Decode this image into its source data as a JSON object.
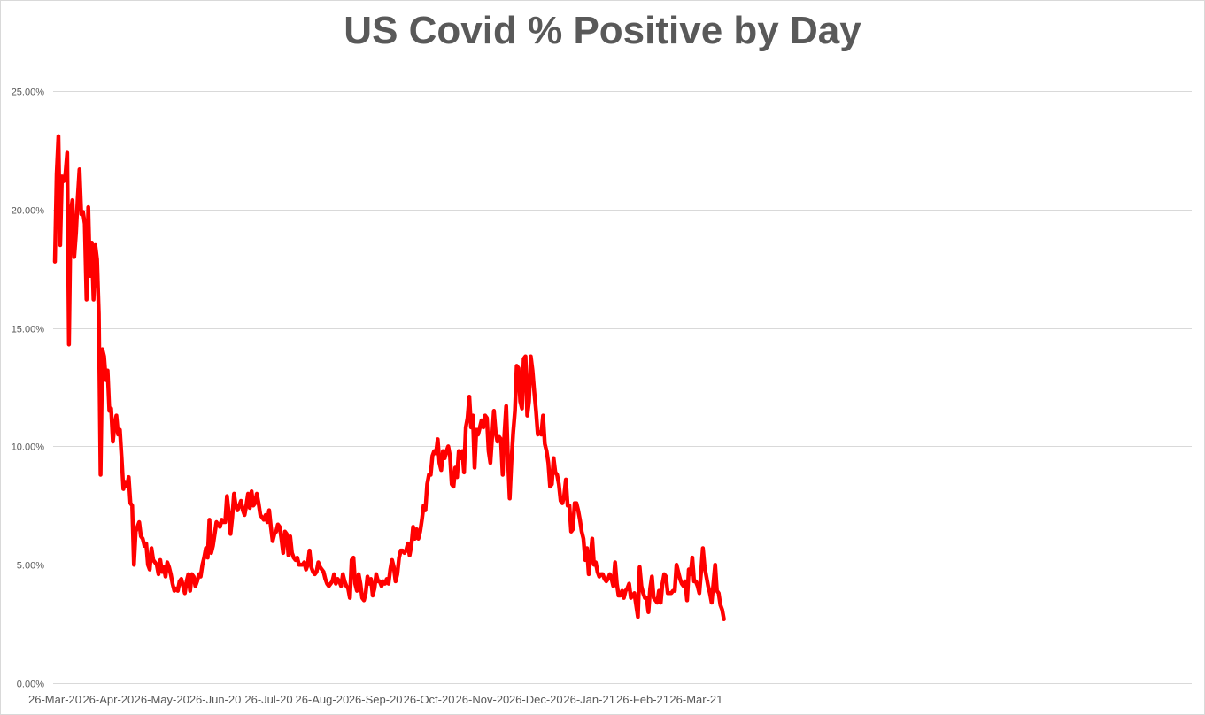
{
  "chart_data": {
    "type": "line",
    "title": "US Covid % Positive by Day",
    "xlabel": "",
    "ylabel": "",
    "ylim": [
      0,
      25
    ],
    "y_ticks": [
      "0.00%",
      "5.00%",
      "10.00%",
      "15.00%",
      "20.00%",
      "25.00%"
    ],
    "x_ticks": [
      "26-Mar-20",
      "26-Apr-20",
      "26-May-20",
      "26-Jun-20",
      "26-Jul-20",
      "26-Aug-20",
      "26-Sep-20",
      "26-Oct-20",
      "26-Nov-20",
      "26-Dec-20",
      "26-Jan-21",
      "26-Feb-21",
      "26-Mar-21"
    ],
    "grid": true,
    "legend": "none",
    "colors": {
      "line": "#ff0000",
      "grid": "#d9d9d9",
      "text": "#595959"
    },
    "series": [
      {
        "name": "% Positive",
        "start_date": "26-Mar-20",
        "interval_days": 1,
        "values": [
          17.8,
          21.5,
          23.1,
          18.5,
          21.4,
          21.2,
          21.5,
          22.4,
          14.3,
          19.9,
          20.4,
          18.0,
          19.0,
          20.5,
          21.7,
          19.8,
          19.9,
          19.4,
          16.2,
          20.1,
          17.2,
          18.6,
          16.2,
          18.5,
          17.9,
          15.6,
          8.8,
          14.1,
          13.8,
          12.8,
          13.2,
          11.5,
          11.6,
          10.2,
          10.9,
          11.3,
          10.5,
          10.7,
          9.5,
          8.2,
          8.5,
          8.3,
          8.7,
          7.6,
          7.5,
          5.0,
          6.4,
          6.6,
          6.8,
          6.2,
          6.1,
          5.8,
          5.9,
          5.0,
          4.8,
          5.7,
          5.2,
          5.1,
          5.0,
          4.6,
          5.2,
          4.7,
          4.9,
          4.5,
          5.1,
          4.9,
          4.6,
          4.2,
          3.9,
          4.0,
          3.9,
          4.3,
          4.4,
          4.1,
          3.8,
          4.3,
          4.6,
          3.9,
          4.6,
          4.5,
          4.1,
          4.3,
          4.6,
          4.5,
          5.0,
          5.3,
          5.7,
          5.3,
          6.9,
          5.5,
          5.8,
          6.3,
          6.8,
          6.7,
          6.6,
          6.9,
          6.8,
          6.8,
          7.9,
          7.2,
          6.3,
          7.0,
          8.0,
          7.5,
          7.3,
          7.5,
          7.7,
          7.3,
          7.1,
          7.5,
          8.0,
          7.4,
          8.1,
          7.5,
          7.6,
          8.0,
          7.6,
          7.1,
          7.0,
          6.9,
          7.1,
          6.8,
          7.3,
          6.6,
          6.0,
          6.3,
          6.4,
          6.7,
          6.6,
          6.1,
          5.5,
          6.4,
          6.3,
          5.4,
          6.2,
          5.5,
          5.3,
          5.2,
          5.3,
          5.0,
          5.0,
          5.0,
          5.1,
          4.8,
          5.0,
          5.6,
          4.9,
          4.7,
          4.6,
          4.7,
          5.1,
          4.9,
          4.8,
          4.7,
          4.4,
          4.2,
          4.1,
          4.2,
          4.3,
          4.6,
          4.2,
          4.4,
          4.3,
          4.1,
          4.6,
          4.3,
          4.1,
          4.0,
          3.6,
          5.2,
          5.3,
          4.2,
          3.9,
          4.6,
          4.2,
          3.6,
          3.5,
          3.8,
          4.5,
          4.2,
          4.4,
          3.7,
          4.0,
          4.6,
          4.3,
          4.3,
          4.1,
          4.3,
          4.2,
          4.4,
          4.2,
          4.8,
          5.2,
          4.9,
          4.3,
          4.6,
          5.3,
          5.6,
          5.6,
          5.5,
          5.6,
          5.9,
          5.4,
          5.8,
          6.6,
          6.1,
          6.5,
          6.1,
          6.4,
          6.9,
          7.5,
          7.3,
          8.4,
          8.8,
          8.8,
          9.6,
          9.8,
          9.7,
          10.3,
          9.3,
          9.0,
          9.8,
          9.5,
          9.8,
          10.0,
          9.6,
          8.4,
          8.3,
          9.1,
          8.7,
          9.8,
          9.5,
          9.8,
          8.9,
          10.8,
          11.2,
          12.1,
          10.8,
          11.3,
          9.1,
          10.7,
          10.5,
          10.8,
          11.1,
          10.8,
          11.3,
          11.2,
          9.8,
          9.3,
          10.4,
          11.5,
          10.6,
          10.2,
          10.4,
          10.3,
          8.8,
          10.5,
          11.7,
          9.5,
          7.8,
          9.4,
          10.6,
          11.5,
          13.4,
          13.3,
          11.9,
          11.6,
          13.7,
          13.8,
          11.3,
          11.9,
          13.8,
          13.2,
          12.3,
          11.5,
          10.5,
          10.6,
          10.5,
          11.3,
          10.1,
          9.8,
          9.3,
          8.3,
          8.4,
          9.5,
          8.9,
          8.8,
          8.4,
          7.7,
          7.6,
          7.9,
          8.6,
          7.5,
          7.5,
          6.4,
          6.5,
          7.6,
          7.6,
          7.3,
          6.9,
          6.4,
          6.1,
          5.2,
          5.7,
          4.6,
          5.3,
          6.1,
          5.0,
          5.1,
          4.7,
          4.5,
          4.6,
          4.6,
          4.4,
          4.3,
          4.4,
          4.6,
          4.4,
          4.1,
          5.1,
          4.2,
          3.7,
          3.7,
          3.9,
          3.6,
          3.9,
          4.0,
          4.2,
          3.6,
          3.7,
          3.8,
          3.3,
          2.8,
          4.9,
          4.1,
          3.8,
          3.6,
          3.6,
          3.0,
          4.0,
          4.5,
          3.6,
          3.5,
          3.4,
          3.9,
          3.4,
          4.2,
          4.6,
          4.5,
          3.8,
          3.8,
          3.8,
          3.9,
          3.9,
          5.0,
          4.7,
          4.4,
          4.2,
          4.1,
          4.3,
          3.5,
          4.8,
          4.6,
          5.3,
          4.3,
          4.3,
          4.1,
          3.8,
          4.7,
          5.7,
          4.9,
          4.5,
          4.1,
          3.8,
          3.4,
          4.2,
          5.0,
          3.9,
          3.8,
          3.3,
          3.1,
          2.7
        ]
      }
    ]
  }
}
